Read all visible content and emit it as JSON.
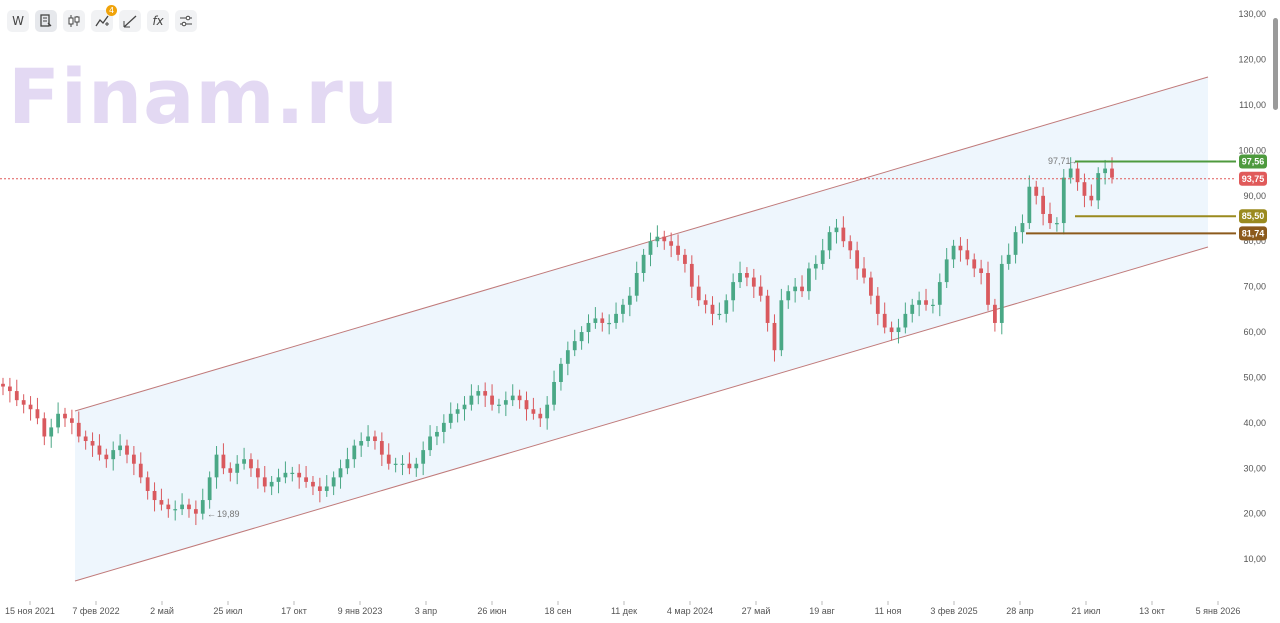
{
  "watermark": "Finam.ru",
  "toolbar": {
    "interval_label": "W",
    "indicator_badge": "4",
    "icons": [
      "interval-button",
      "chart-type-icon",
      "candles-icon",
      "indicators-icon",
      "drawing-icon",
      "formula-icon",
      "settings-icon"
    ],
    "formula_label": "fx"
  },
  "colors": {
    "up": "#4aa886",
    "down": "#d9595e",
    "channel_line": "#c07a7a",
    "channel_fill": "#eef6fd"
  },
  "chart_data": {
    "type": "candlestick",
    "title": "",
    "y_axis": {
      "min": 0,
      "max": 130,
      "ticks": [
        "10,00",
        "20,00",
        "30,00",
        "40,00",
        "50,00",
        "60,00",
        "70,00",
        "80,00",
        "90,00",
        "100,00",
        "110,00",
        "120,00",
        "130,00"
      ],
      "position": "right"
    },
    "x_ticks": [
      "15 ноя 2021",
      "7 фев 2022",
      "2 май",
      "25 июл",
      "17 окт",
      "9 янв 2023",
      "3 апр",
      "26 июн",
      "18 сен",
      "11 дек",
      "4 мар 2024",
      "27 май",
      "19 авг",
      "11 ноя",
      "3 фев 2025",
      "28 апр",
      "21 июл",
      "13 окт",
      "5 янв 2026"
    ],
    "closes": [
      48,
      47,
      45,
      44,
      43,
      41,
      37,
      39,
      42,
      41,
      40,
      37,
      36,
      35,
      33,
      32,
      34,
      35,
      33,
      31,
      28,
      25,
      23,
      22,
      21,
      21,
      22,
      21,
      20,
      23,
      28,
      33,
      30,
      29,
      31,
      32,
      30,
      28,
      26,
      27,
      28,
      29,
      29,
      28,
      27,
      26,
      25,
      26,
      28,
      30,
      32,
      35,
      36,
      37,
      36,
      33,
      31,
      31,
      31,
      30,
      31,
      34,
      37,
      38,
      40,
      42,
      43,
      44,
      46,
      47,
      46,
      44,
      44,
      45,
      46,
      45,
      43,
      42,
      41,
      44,
      49,
      53,
      56,
      58,
      60,
      62,
      63,
      62,
      62,
      64,
      66,
      68,
      73,
      77,
      80,
      81,
      80,
      79,
      77,
      75,
      70,
      67,
      66,
      64,
      64,
      67,
      71,
      73,
      72,
      70,
      68,
      62,
      56,
      67,
      69,
      70,
      69,
      74,
      75,
      78,
      82,
      83,
      80,
      78,
      74,
      72,
      68,
      64,
      61,
      60,
      61,
      64,
      66,
      67,
      66,
      66,
      71,
      76,
      79,
      78,
      76,
      74,
      73,
      66,
      62,
      75,
      77,
      82,
      84,
      92,
      90,
      86,
      84,
      84,
      94,
      96,
      93,
      90,
      89,
      95,
      96,
      94
    ],
    "annotations": {
      "low_label": "19,89",
      "high_label": "97,71"
    },
    "current_price": {
      "value": 93.75,
      "label": "93,75",
      "color": "#e05a5a"
    },
    "levels": [
      {
        "value": 97.56,
        "label": "97,56",
        "color": "#4e9a3e"
      },
      {
        "value": 85.5,
        "label": "85,50",
        "color": "#9a8a1e"
      },
      {
        "value": 81.74,
        "label": "81,74",
        "color": "#8c5a1c"
      }
    ],
    "grid": false,
    "legend": "none"
  }
}
